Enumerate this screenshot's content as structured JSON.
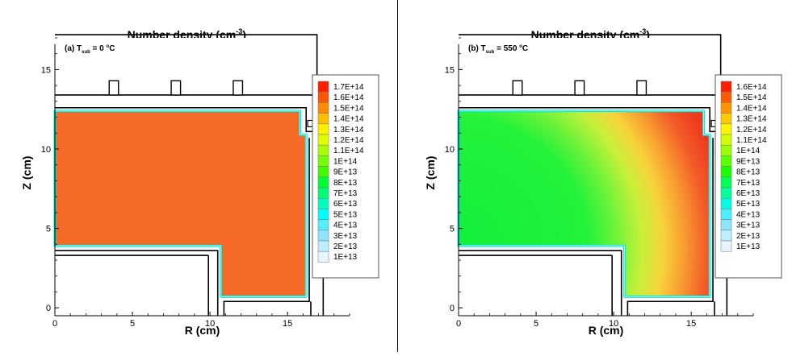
{
  "chart_data": [
    {
      "type": "heatmap",
      "title": "Number density (cm⁻³)",
      "title_main": "Number density (cm",
      "title_sup": "-3",
      "title_end": ")",
      "annotation": {
        "prefix": "(a) T",
        "subscript": "sub",
        "value": " = 0 ",
        "superscript": "o",
        "unit": "C"
      },
      "xlabel": "R (cm)",
      "ylabel": "Z (cm)",
      "xlim": [
        0,
        19
      ],
      "ylim": [
        -0.5,
        17
      ],
      "xticks": [
        "0",
        "5",
        "10",
        "15"
      ],
      "yticks": [
        "0",
        "5",
        "10",
        "15"
      ],
      "legend": {
        "position": "right",
        "levels": [
          "1.7E+14",
          "1.6E+14",
          "1.5E+14",
          "1.4E+14",
          "1.3E+14",
          "1.2E+14",
          "1.1E+14",
          "1E+14",
          "9E+13",
          "8E+13",
          "7E+13",
          "6E+13",
          "5E+13",
          "4E+13",
          "3E+13",
          "2E+13",
          "1E+13"
        ],
        "colors": [
          "#ff1f00",
          "#ff5500",
          "#ff8a00",
          "#ffbe00",
          "#fff000",
          "#ddff00",
          "#a9ff00",
          "#75ff00",
          "#3dff00",
          "#00ff30",
          "#00ff75",
          "#00ffba",
          "#00ffff",
          "#50f0ff",
          "#8ee4ff",
          "#bceeff",
          "#e6f6ff"
        ]
      },
      "field": {
        "pattern": "uniform",
        "core_level": "1.6E+14",
        "background_color": "#f46a26"
      }
    },
    {
      "type": "heatmap",
      "title": "Number density (cm⁻³)",
      "title_main": "Number density (cm",
      "title_sup": "-3",
      "title_end": ")",
      "annotation": {
        "prefix": "(b) T",
        "subscript": "sub",
        "value": " = 550 ",
        "superscript": "o",
        "unit": "C"
      },
      "xlabel": "R (cm)",
      "ylabel": "Z (cm)",
      "xlim": [
        0,
        19
      ],
      "ylim": [
        -0.5,
        17
      ],
      "xticks": [
        "0",
        "5",
        "10",
        "15"
      ],
      "yticks": [
        "0",
        "5",
        "10",
        "15"
      ],
      "legend": {
        "position": "right",
        "levels": [
          "1.6E+14",
          "1.5E+14",
          "1.4E+14",
          "1.3E+14",
          "1.2E+14",
          "1.1E+14",
          "1E+14",
          "9E+13",
          "8E+13",
          "7E+13",
          "6E+13",
          "5E+13",
          "4E+13",
          "3E+13",
          "2E+13",
          "1E+13"
        ],
        "colors": [
          "#ff1f00",
          "#ff5a00",
          "#ff9400",
          "#ffca00",
          "#fff500",
          "#d2ff00",
          "#9aff00",
          "#5cff00",
          "#1aff00",
          "#00ff55",
          "#00ff9c",
          "#00ffe0",
          "#4df0ff",
          "#8ee4ff",
          "#bceeff",
          "#e6f6ff"
        ]
      },
      "field": {
        "pattern": "radial_gradient",
        "hot_corner": "outer-bottom-right",
        "core_level": "9E+13",
        "background_color": "#12f03a"
      }
    }
  ]
}
